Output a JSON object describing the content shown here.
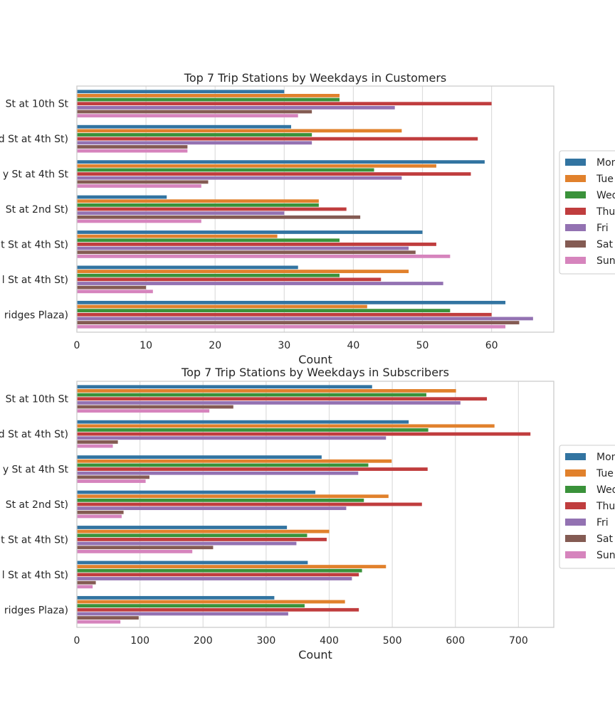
{
  "chart_data": [
    {
      "type": "bar",
      "orientation": "horizontal",
      "title": "Top 7 Trip Stations by Weekdays in Customers",
      "xlabel": "Count",
      "ylabel": "",
      "xlim": [
        0,
        69
      ],
      "xticks": [
        "0",
        "10",
        "20",
        "30",
        "40",
        "50",
        "60"
      ],
      "grid": true,
      "legend_position": "right, partially cut off",
      "categories": [
        "St at 10th St",
        "d St at 4th St)",
        "y St at 4th St",
        "St at 2nd St)",
        "t St at 4th St)",
        "l St at 4th St)",
        "ridges Plaza)"
      ],
      "series": [
        {
          "name": "Mon",
          "color": "#3274a1",
          "values": [
            30,
            31,
            59,
            13,
            50,
            32,
            62
          ]
        },
        {
          "name": "Tue",
          "color": "#e1812c",
          "values": [
            38,
            47,
            52,
            35,
            29,
            48,
            42
          ]
        },
        {
          "name": "Wed",
          "color": "#3a923a",
          "values": [
            38,
            34,
            43,
            35,
            38,
            38,
            54
          ]
        },
        {
          "name": "Thu",
          "color": "#c03d3e",
          "values": [
            60,
            58,
            57,
            39,
            52,
            44,
            60
          ]
        },
        {
          "name": "Fri",
          "color": "#9372b2",
          "values": [
            46,
            34,
            47,
            30,
            48,
            53,
            66
          ]
        },
        {
          "name": "Sat",
          "color": "#845b53",
          "values": [
            34,
            16,
            19,
            41,
            49,
            10,
            64
          ]
        },
        {
          "name": "Sun",
          "color": "#d684bd",
          "values": [
            32,
            16,
            18,
            18,
            54,
            11,
            62
          ]
        }
      ]
    },
    {
      "type": "bar",
      "orientation": "horizontal",
      "title": "Top 7 Trip Stations by Weekdays in Subscribers",
      "xlabel": "Count",
      "ylabel": "",
      "xlim": [
        0,
        756
      ],
      "xticks": [
        "0",
        "100",
        "200",
        "300",
        "400",
        "500",
        "600",
        "700"
      ],
      "grid": true,
      "legend_position": "right, partially cut off",
      "categories": [
        "St at 10th St",
        "d St at 4th St)",
        "y St at 4th St",
        "St at 2nd St)",
        "t St at 4th St)",
        "l St at 4th St)",
        "ridges Plaza)"
      ],
      "series": [
        {
          "name": "Mon",
          "color": "#3274a1",
          "values": [
            468,
            526,
            388,
            378,
            333,
            366,
            313
          ]
        },
        {
          "name": "Tue",
          "color": "#e1812c",
          "values": [
            601,
            662,
            499,
            494,
            400,
            490,
            425
          ]
        },
        {
          "name": "Wed",
          "color": "#3a923a",
          "values": [
            554,
            557,
            462,
            455,
            365,
            452,
            361
          ]
        },
        {
          "name": "Thu",
          "color": "#c03d3e",
          "values": [
            650,
            719,
            556,
            547,
            396,
            447,
            447
          ]
        },
        {
          "name": "Fri",
          "color": "#9372b2",
          "values": [
            608,
            490,
            446,
            427,
            348,
            436,
            335
          ]
        },
        {
          "name": "Sat",
          "color": "#845b53",
          "values": [
            248,
            65,
            115,
            74,
            216,
            30,
            98
          ]
        },
        {
          "name": "Sun",
          "color": "#d684bd",
          "values": [
            210,
            57,
            109,
            71,
            183,
            25,
            69
          ]
        }
      ]
    }
  ]
}
